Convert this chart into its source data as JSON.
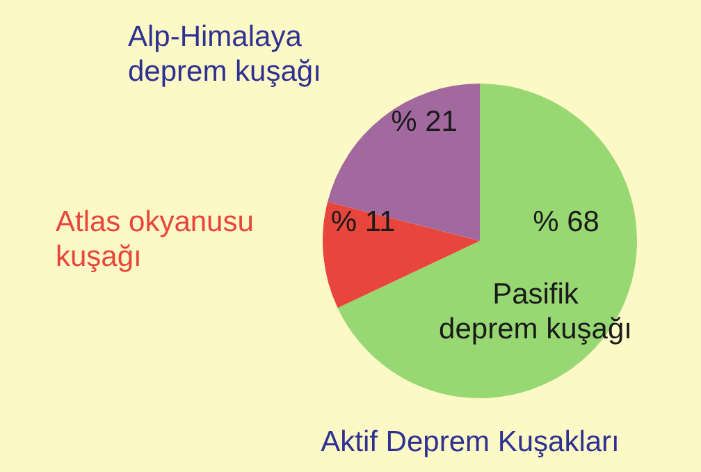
{
  "chart_data": {
    "type": "pie",
    "title": "Aktif Deprem Kuşakları",
    "categories": [
      "Pasifik\ndeprem kuşağı",
      "Atlas okyanusu\nkuşağı",
      "Alp-Himalaya\ndeprem kuşağı"
    ],
    "values": [
      68,
      11,
      21
    ],
    "colors": [
      "#98d872",
      "#e8453c",
      "#a2699f"
    ],
    "value_labels": [
      "% 68",
      "% 11",
      "% 21"
    ]
  }
}
